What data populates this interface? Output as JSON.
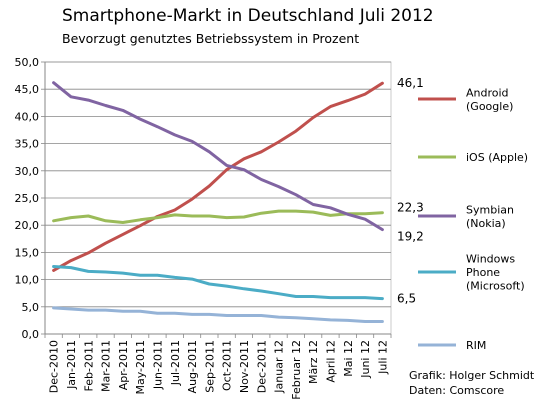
{
  "chart_data": {
    "type": "line",
    "title": "Smartphone-Markt in Deutschland Juli 2012",
    "subtitle": "Bevorzugt genutztes Betriebssystem in Prozent",
    "xlabel": "",
    "ylabel": "",
    "ylim": [
      0,
      50
    ],
    "yticks": [
      "0,0",
      "5,0",
      "10,0",
      "15,0",
      "20,0",
      "25,0",
      "30,0",
      "35,0",
      "40,0",
      "45,0",
      "50,0"
    ],
    "grid": true,
    "legend_position": "right",
    "categories": [
      "Dec-2010",
      "Jan-2011",
      "Feb-2011",
      "Mar-2011",
      "Apr-2011",
      "May-2011",
      "Jun-2011",
      "Jul-2011",
      "Aug-2011",
      "Sep-2011",
      "Oct-2011",
      "Nov-2011",
      "Dec-2011",
      "Januar 12",
      "Februar 12",
      "März 12",
      "April 12",
      "Mai 12",
      "Juni 12",
      "Juli 12"
    ],
    "series": [
      {
        "name": "Android (Google)",
        "legend_lines": [
          "Android",
          "(Google)"
        ],
        "color": "#c0504d",
        "values": [
          11.7,
          13.5,
          14.9,
          16.7,
          18.3,
          19.9,
          21.6,
          22.8,
          24.8,
          27.2,
          30.2,
          32.2,
          33.5,
          35.3,
          37.3,
          39.8,
          41.8,
          42.9,
          44.1,
          46.1
        ],
        "end_label": "46,1"
      },
      {
        "name": "iOS (Apple)",
        "legend_lines": [
          "iOS (Apple)"
        ],
        "color": "#9bbb59",
        "values": [
          20.8,
          21.4,
          21.7,
          20.8,
          20.5,
          21.0,
          21.4,
          21.9,
          21.7,
          21.7,
          21.4,
          21.5,
          22.2,
          22.6,
          22.6,
          22.4,
          21.8,
          22.1,
          22.1,
          22.3
        ],
        "end_label": "22,3"
      },
      {
        "name": "Symbian (Nokia)",
        "legend_lines": [
          "Symbian",
          "(Nokia)"
        ],
        "color": "#8064a2",
        "values": [
          46.2,
          43.6,
          43.0,
          42.0,
          41.1,
          39.5,
          38.1,
          36.6,
          35.4,
          33.5,
          31.0,
          30.2,
          28.4,
          27.1,
          25.6,
          23.8,
          23.2,
          22.0,
          21.1,
          19.2
        ],
        "end_label": "19,2"
      },
      {
        "name": "Windows Phone (Microsoft)",
        "legend_lines": [
          "Windows",
          "Phone",
          "(Microsoft)"
        ],
        "color": "#4bacc6",
        "values": [
          12.4,
          12.2,
          11.5,
          11.4,
          11.2,
          10.8,
          10.8,
          10.4,
          10.1,
          9.2,
          8.8,
          8.3,
          7.9,
          7.4,
          6.9,
          6.9,
          6.7,
          6.7,
          6.7,
          6.5
        ],
        "end_label": "6,5"
      },
      {
        "name": "RIM",
        "legend_lines": [
          "RIM"
        ],
        "color": "#95b3d7",
        "values": [
          4.8,
          4.6,
          4.4,
          4.4,
          4.2,
          4.2,
          3.8,
          3.8,
          3.6,
          3.6,
          3.4,
          3.4,
          3.4,
          3.1,
          3.0,
          2.8,
          2.6,
          2.5,
          2.3,
          2.3
        ],
        "end_label": ""
      }
    ]
  },
  "credit": {
    "line1": "Grafik: Holger Schmidt",
    "line2": "Daten: Comscore"
  }
}
